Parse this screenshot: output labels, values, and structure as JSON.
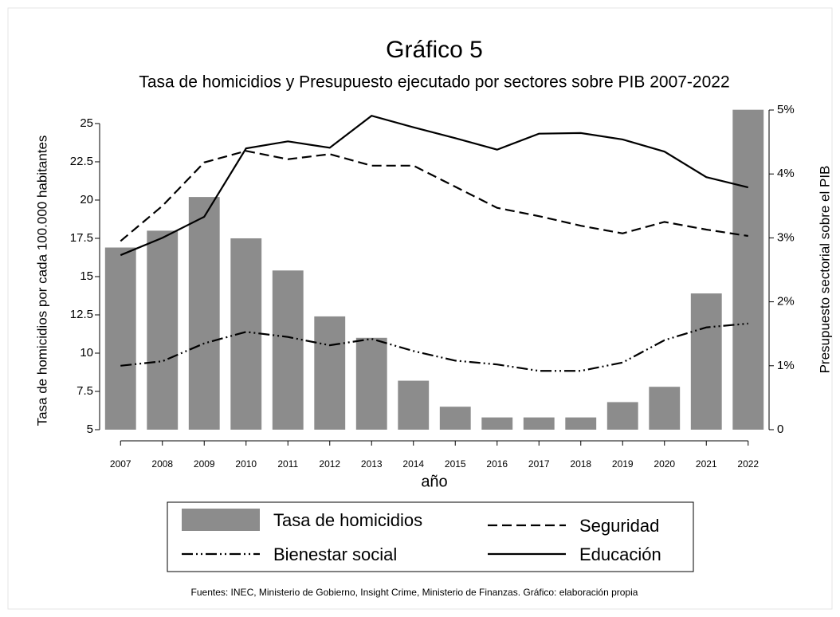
{
  "chart_data": {
    "type": "bar-line",
    "title": "Gráfico 5",
    "subtitle": "Tasa de homicidios y Presupuesto ejecutado por sectores sobre PIB 2007-2022",
    "xlabel": "año",
    "ylabel": "Tasa de homicidios por cada 100.000 habitantes",
    "y2label": "Presupuesto sectorial sobre el PIB",
    "source": "Fuentes: INEC, Ministerio de Gobierno, Insight Crime, Ministerio de Finanzas. Gráfico: elaboración propia",
    "categories": [
      "2007",
      "2008",
      "2009",
      "2010",
      "2011",
      "2012",
      "2013",
      "2014",
      "2015",
      "2016",
      "2017",
      "2018",
      "2019",
      "2020",
      "2021",
      "2022"
    ],
    "ylim": [
      5,
      26.3
    ],
    "yticks": [
      5,
      7.5,
      10,
      12.5,
      15,
      17.5,
      20,
      22.5,
      25
    ],
    "y2lim": [
      0,
      5.1
    ],
    "y2ticks": [
      0,
      {
        "value": 1,
        "label": "1%"
      },
      {
        "value": 2,
        "label": "2%"
      },
      {
        "value": 3,
        "label": "3%"
      },
      {
        "value": 4,
        "label": "4%"
      },
      {
        "value": 5,
        "label": "5%"
      }
    ],
    "series": [
      {
        "name": "Tasa de homicidios",
        "kind": "bar",
        "axis": "y",
        "color": "#8c8c8c",
        "values": [
          16.9,
          18.0,
          20.2,
          17.5,
          15.4,
          12.4,
          11.0,
          8.2,
          6.5,
          5.8,
          5.8,
          5.8,
          6.8,
          7.8,
          13.9,
          25.9
        ]
      },
      {
        "name": "Seguridad",
        "kind": "line",
        "axis": "y2",
        "color": "#000000",
        "dash": "dashed",
        "values": [
          2.95,
          3.5,
          4.18,
          4.36,
          4.23,
          4.31,
          4.13,
          4.13,
          3.8,
          3.47,
          3.34,
          3.19,
          3.07,
          3.25,
          3.13,
          3.03
        ]
      },
      {
        "name": "Bienestar social",
        "kind": "line",
        "axis": "y2",
        "color": "#000000",
        "dash": "dash-dot-dot",
        "values": [
          1.0,
          1.07,
          1.35,
          1.53,
          1.45,
          1.32,
          1.42,
          1.23,
          1.08,
          1.02,
          0.92,
          0.92,
          1.05,
          1.4,
          1.6,
          1.66
        ]
      },
      {
        "name": "Educación",
        "kind": "line",
        "axis": "y2",
        "color": "#000000",
        "dash": "solid",
        "values": [
          2.73,
          3.0,
          3.33,
          4.4,
          4.51,
          4.41,
          4.91,
          4.73,
          4.56,
          4.38,
          4.63,
          4.64,
          4.54,
          4.35,
          3.95,
          3.79
        ]
      }
    ]
  }
}
